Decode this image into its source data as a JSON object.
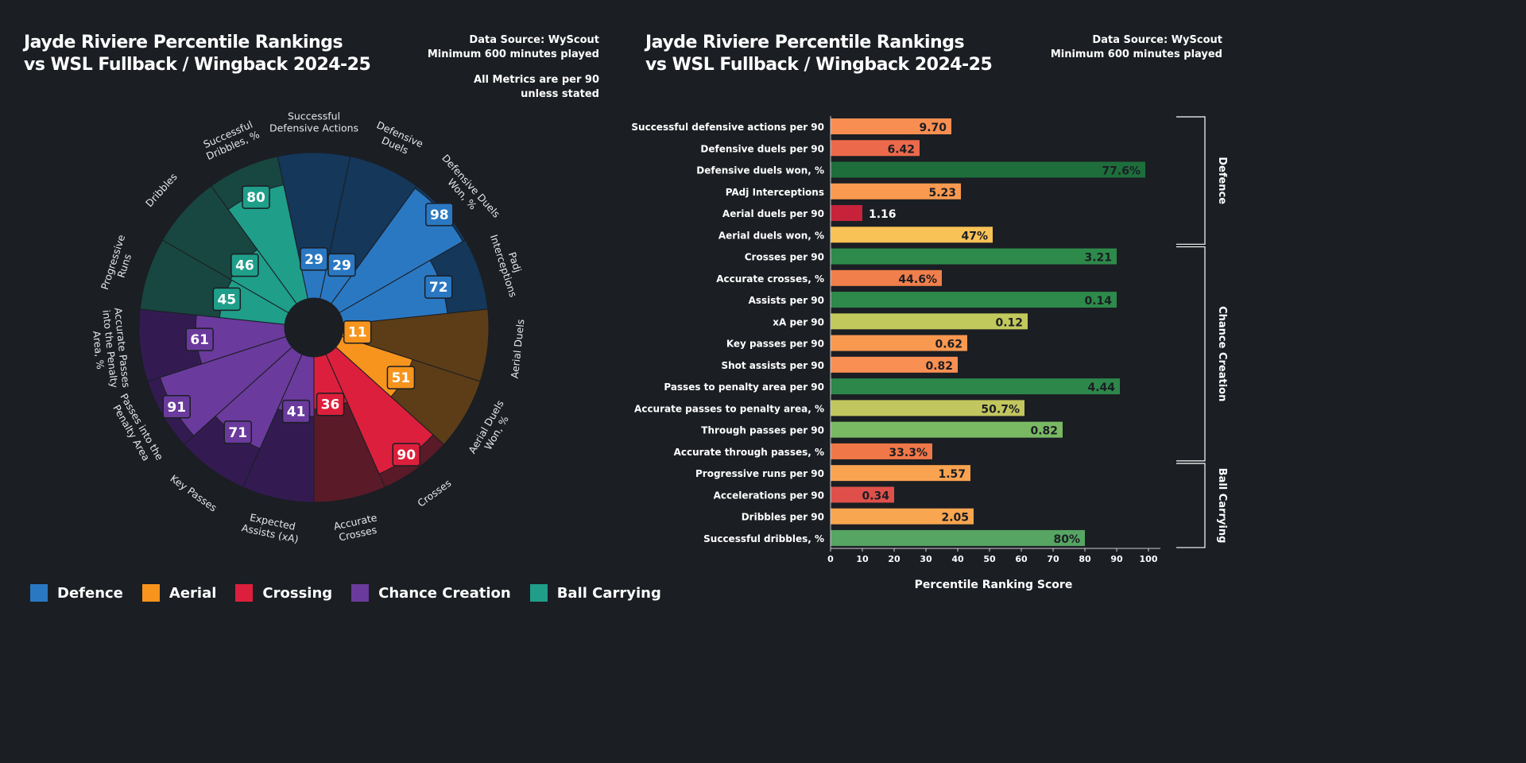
{
  "left_panel": {
    "title_line1": "Jayde Riviere Percentile Rankings",
    "title_line2": "vs WSL Fullback / Wingback 2024-25",
    "source_line1": "Data Source: WyScout",
    "source_line2": "Minimum 600 minutes played",
    "note_line1": "All Metrics are per 90",
    "note_line2": "unless stated"
  },
  "right_panel": {
    "title_line1": "Jayde Riviere Percentile Rankings",
    "title_line2": "vs WSL Fullback / Wingback 2024-25",
    "source_line1": "Data Source: WyScout",
    "source_line2": "Minimum 600 minutes played"
  },
  "legend": [
    {
      "label": "Defence",
      "color": "#2a78c2"
    },
    {
      "label": "Aerial",
      "color": "#f7941d"
    },
    {
      "label": "Crossing",
      "color": "#dc1f3c"
    },
    {
      "label": "Chance Creation",
      "color": "#6a3a9c"
    },
    {
      "label": "Ball Carrying",
      "color": "#1f9e8a"
    }
  ],
  "chart_data": [
    {
      "type": "radial-bar",
      "range": [
        0,
        100
      ],
      "groups": {
        "Defence": {
          "fill": "#2a78c2",
          "background": "#14375a"
        },
        "Aerial": {
          "fill": "#f7941d",
          "background": "#5c3d17"
        },
        "Crossing": {
          "fill": "#dc1f3c",
          "background": "#5a1a28"
        },
        "Chance Creation": {
          "fill": "#6a3a9c",
          "background": "#331b52"
        },
        "Ball Carrying": {
          "fill": "#1f9e8a",
          "background": "#184640"
        }
      },
      "segments": [
        {
          "label": [
            "Successful",
            "Defensive Actions"
          ],
          "group": "Defence",
          "value": 29
        },
        {
          "label": [
            "Defensive",
            "Duels"
          ],
          "group": "Defence",
          "value": 29
        },
        {
          "label": [
            "Defensive Duels",
            "Won, %"
          ],
          "group": "Defence",
          "value": 98
        },
        {
          "label": [
            "Padj",
            "Interceptions"
          ],
          "group": "Defence",
          "value": 72
        },
        {
          "label": [
            "Aerial Duels"
          ],
          "group": "Aerial",
          "value": 11
        },
        {
          "label": [
            "Aerial Duels",
            "Won, %"
          ],
          "group": "Aerial",
          "value": 51
        },
        {
          "label": [
            "Crosses"
          ],
          "group": "Crossing",
          "value": 90
        },
        {
          "label": [
            "Accurate",
            "Crosses"
          ],
          "group": "Crossing",
          "value": 36
        },
        {
          "label": [
            "Expected",
            "Assists (xA)"
          ],
          "group": "Chance Creation",
          "value": 41
        },
        {
          "label": [
            "Key Passes"
          ],
          "group": "Chance Creation",
          "value": 71
        },
        {
          "label": [
            "Passes into the",
            "Penalty Area"
          ],
          "group": "Chance Creation",
          "value": 91
        },
        {
          "label": [
            "Accurate Passes",
            "into the Penalty",
            "Area, %"
          ],
          "group": "Chance Creation",
          "value": 61
        },
        {
          "label": [
            "Progressive",
            "Runs"
          ],
          "group": "Ball Carrying",
          "value": 45
        },
        {
          "label": [
            "Dribbles"
          ],
          "group": "Ball Carrying",
          "value": 46
        },
        {
          "label": [
            "Successful",
            "Dribbles, %"
          ],
          "group": "Ball Carrying",
          "value": 80
        }
      ]
    },
    {
      "type": "bar",
      "orientation": "horizontal",
      "xlabel": "Percentile Ranking Score",
      "xlim": [
        0,
        100
      ],
      "xticks": [
        0,
        10,
        20,
        30,
        40,
        50,
        60,
        70,
        80,
        90,
        100
      ],
      "groups": [
        {
          "label": "Defence",
          "rows": [
            0,
            5
          ]
        },
        {
          "label": "Chance Creation",
          "rows": [
            6,
            15
          ]
        },
        {
          "label": "Ball Carrying",
          "rows": [
            16,
            19
          ]
        }
      ],
      "bars": [
        {
          "label": "Successful defensive actions per 90",
          "percentile": 38,
          "value_label": "9.70",
          "color": "#f98e52"
        },
        {
          "label": "Defensive duels per 90",
          "percentile": 28,
          "value_label": "6.42",
          "color": "#ec6a4b"
        },
        {
          "label": "Defensive duels won, %",
          "percentile": 99,
          "value_label": "77.6%",
          "color": "#1e6e3c"
        },
        {
          "label": "PAdj Interceptions",
          "percentile": 41,
          "value_label": "5.23",
          "color": "#f99a50"
        },
        {
          "label": "Aerial duels per 90",
          "percentile": 10,
          "value_label": "1.16",
          "color": "#c6233a"
        },
        {
          "label": "Aerial duels won, %",
          "percentile": 51,
          "value_label": "47%",
          "color": "#f9c256"
        },
        {
          "label": "Crosses per 90",
          "percentile": 90,
          "value_label": "3.21",
          "color": "#2d8a4a"
        },
        {
          "label": "Accurate crosses, %",
          "percentile": 35,
          "value_label": "44.6%",
          "color": "#f07f4b"
        },
        {
          "label": "Assists per 90",
          "percentile": 90,
          "value_label": "0.14",
          "color": "#2d8a4a"
        },
        {
          "label": "xA per 90",
          "percentile": 62,
          "value_label": "0.12",
          "color": "#c2c95c"
        },
        {
          "label": "Key passes per 90",
          "percentile": 43,
          "value_label": "0.62",
          "color": "#f9984f"
        },
        {
          "label": "Shot assists per 90",
          "percentile": 40,
          "value_label": "0.82",
          "color": "#f98f52"
        },
        {
          "label": "Passes to penalty area per 90",
          "percentile": 91,
          "value_label": "4.44",
          "color": "#2d874a"
        },
        {
          "label": "Accurate passes to penalty area, %",
          "percentile": 61,
          "value_label": "50.7%",
          "color": "#c2c65e"
        },
        {
          "label": "Through passes per 90",
          "percentile": 73,
          "value_label": "0.82",
          "color": "#7ab963"
        },
        {
          "label": "Accurate through passes, %",
          "percentile": 32,
          "value_label": "33.3%",
          "color": "#f07848"
        },
        {
          "label": "Progressive runs per 90",
          "percentile": 44,
          "value_label": "1.57",
          "color": "#f9a350"
        },
        {
          "label": "Accelerations per 90",
          "percentile": 20,
          "value_label": "0.34",
          "color": "#e0504a"
        },
        {
          "label": "Dribbles per 90",
          "percentile": 45,
          "value_label": "2.05",
          "color": "#f9a650"
        },
        {
          "label": "Successful dribbles, %",
          "percentile": 80,
          "value_label": "80%",
          "color": "#56a563"
        }
      ]
    }
  ]
}
